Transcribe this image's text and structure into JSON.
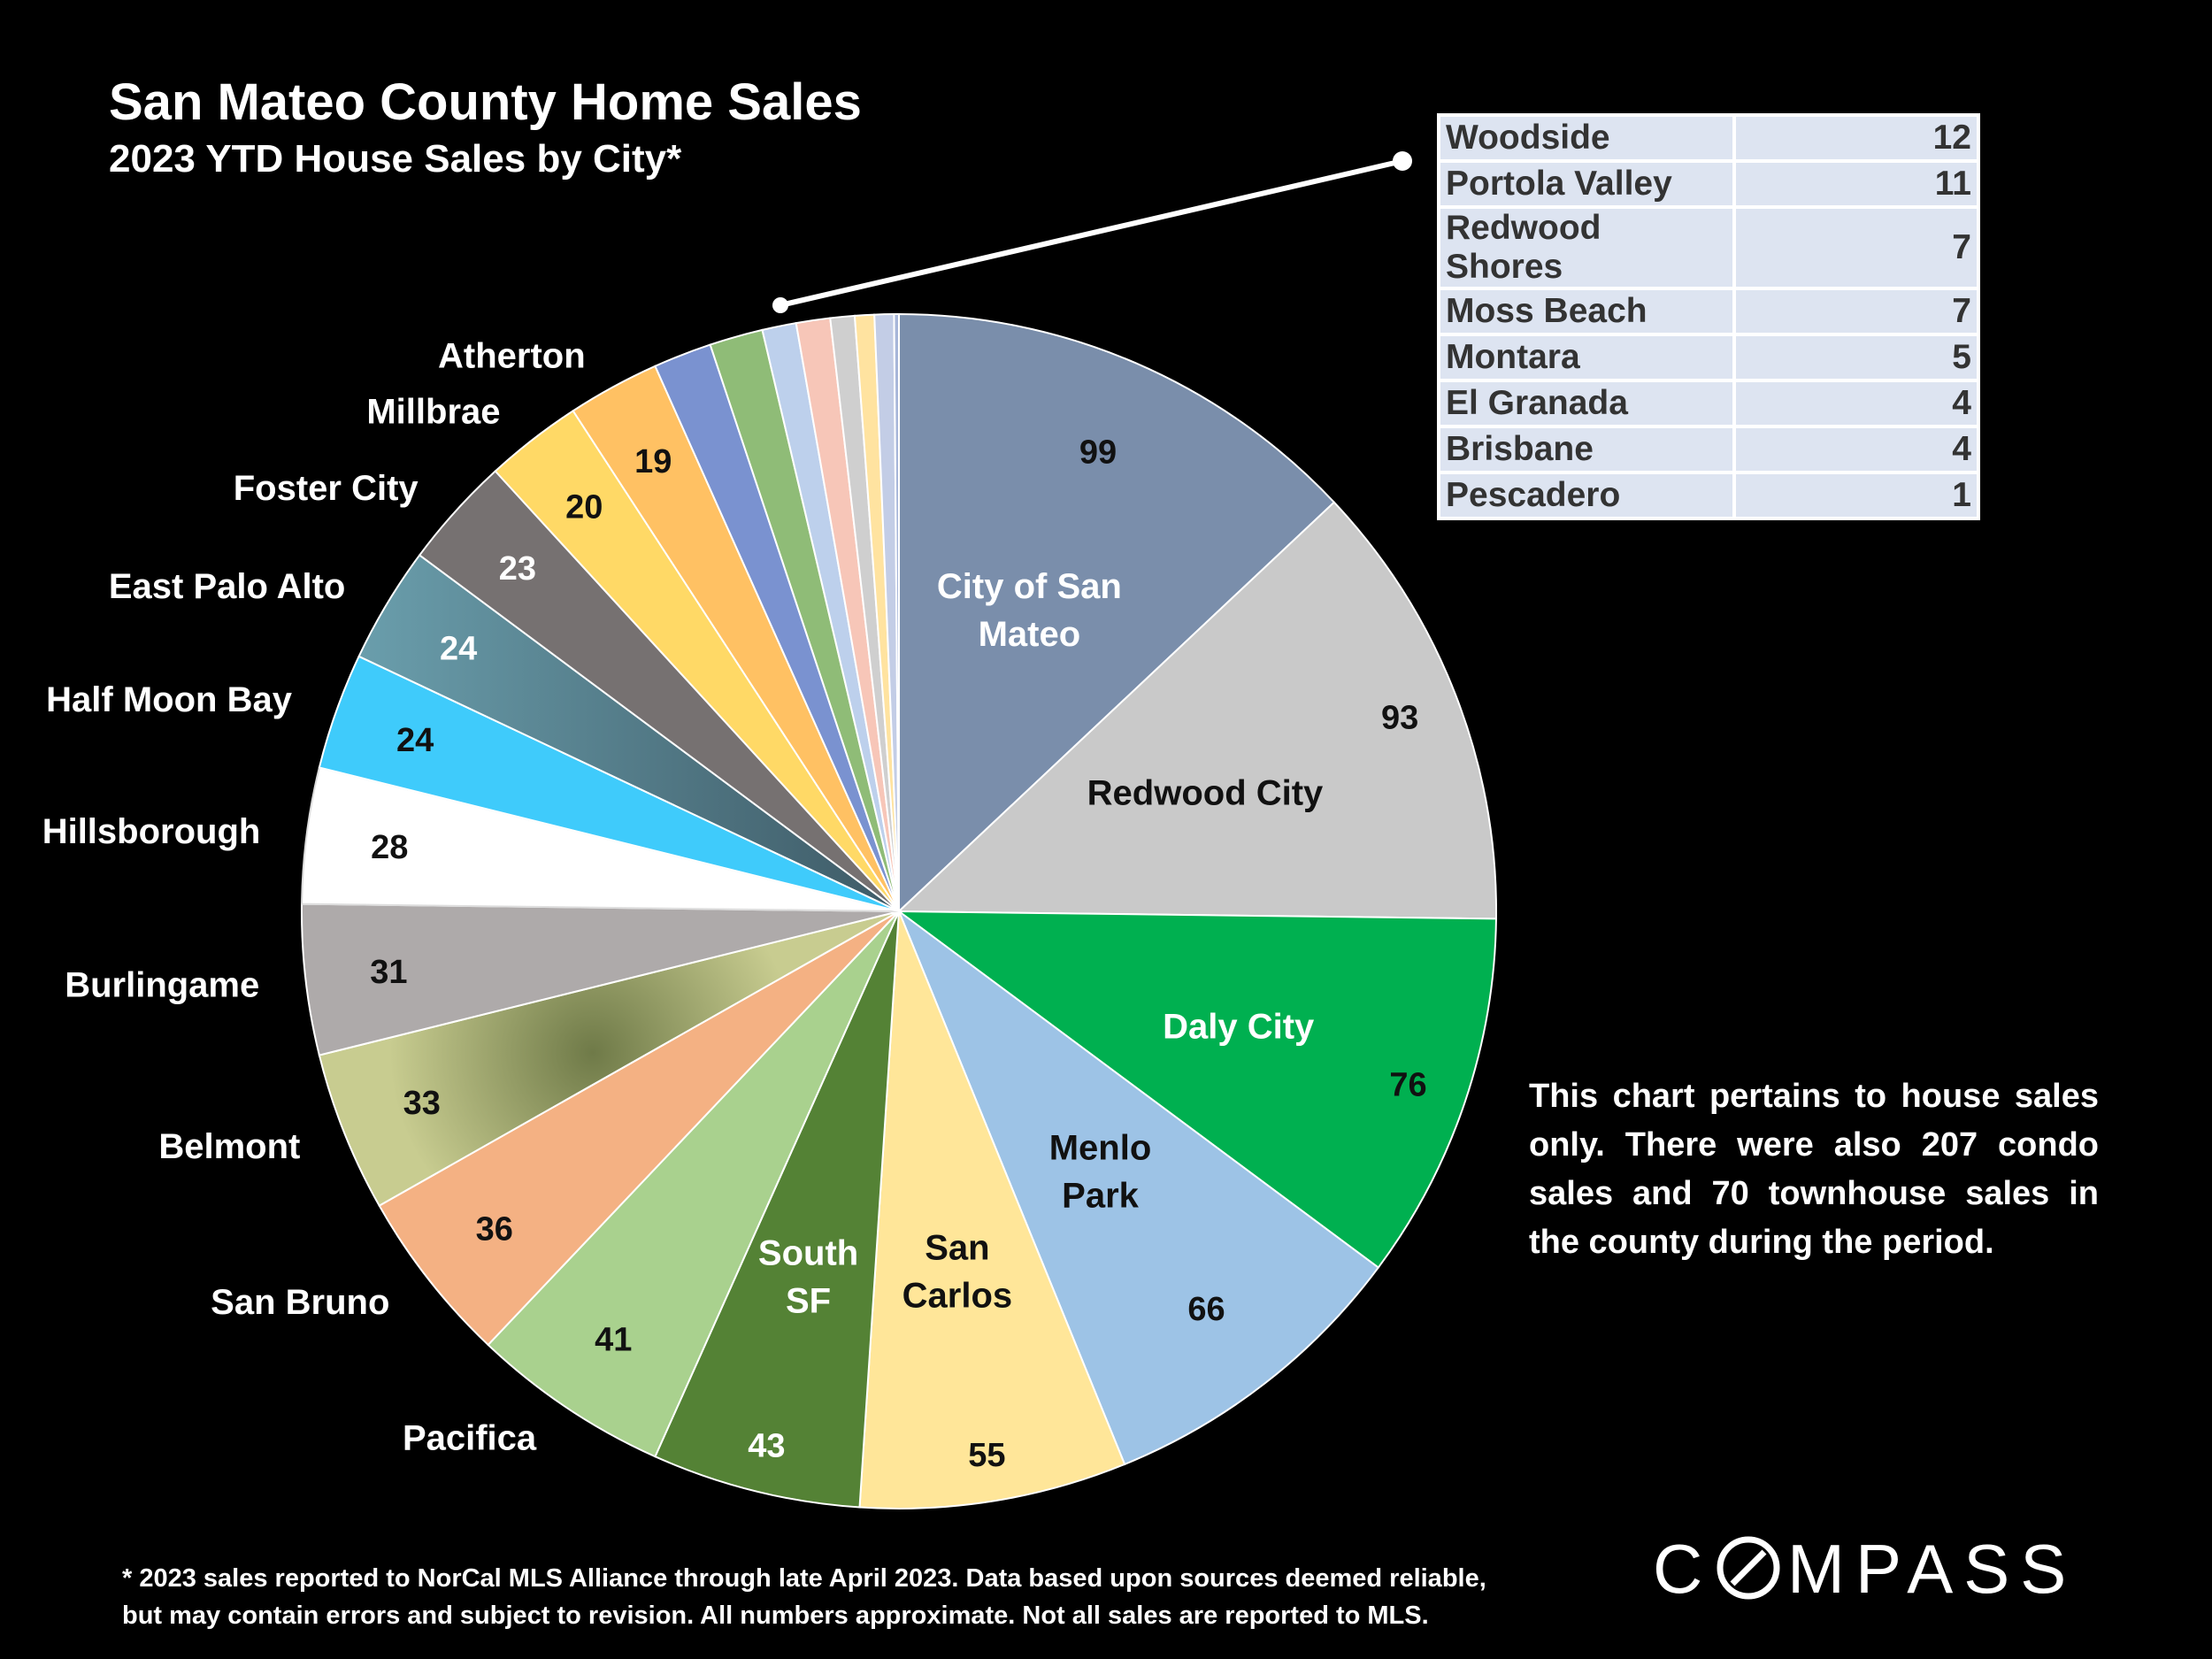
{
  "header": {
    "title": "San Mateo County Home Sales",
    "subtitle": "2023 YTD House Sales by City*"
  },
  "chart_data": {
    "type": "pie",
    "title": "San Mateo County Home Sales",
    "subtitle": "2023 YTD House Sales by City*",
    "slices": [
      {
        "name": "City of San Mateo",
        "value": 99,
        "color": "#7a8eab"
      },
      {
        "name": "Redwood City",
        "value": 93,
        "color": "#c9c9c9"
      },
      {
        "name": "Daly City",
        "value": 76,
        "color": "#00b050"
      },
      {
        "name": "Menlo Park",
        "value": 66,
        "color": "#9dc3e6"
      },
      {
        "name": "San Carlos",
        "value": 55,
        "color": "#ffe699"
      },
      {
        "name": "South SF",
        "value": 43,
        "color": "#548235"
      },
      {
        "name": "Pacifica",
        "value": 41,
        "color": "#a9d18e"
      },
      {
        "name": "San Bruno",
        "value": 36,
        "color": "#f4b183"
      },
      {
        "name": "Belmont",
        "value": 33,
        "color": "#b9bd83"
      },
      {
        "name": "Burlingame",
        "value": 31,
        "color": "#aeaaaa"
      },
      {
        "name": "Hillsborough",
        "value": 28,
        "color": "#ffffff"
      },
      {
        "name": "Half Moon Bay",
        "value": 24,
        "color": "#3fcbfb"
      },
      {
        "name": "East Palo Alto",
        "value": 24,
        "color": "#5d8a98"
      },
      {
        "name": "Foster City",
        "value": 23,
        "color": "#767171"
      },
      {
        "name": "Millbrae",
        "value": 20,
        "color": "#ffd966"
      },
      {
        "name": "Atherton",
        "value": 19,
        "color": "#ffc163"
      },
      {
        "name": "Woodside",
        "value": 12,
        "color": "#7a92d0"
      },
      {
        "name": "Portola Valley",
        "value": 11,
        "color": "#8fbc77"
      },
      {
        "name": "Redwood Shores",
        "value": 7,
        "color": "#bdd0ec"
      },
      {
        "name": "Moss Beach",
        "value": 7,
        "color": "#f7c6b8"
      },
      {
        "name": "Montara",
        "value": 5,
        "color": "#cfcfcf"
      },
      {
        "name": "El Granada",
        "value": 4,
        "color": "#ffe3a0"
      },
      {
        "name": "Brisbane",
        "value": 4,
        "color": "#c3cde6"
      },
      {
        "name": "Pescadero",
        "value": 1,
        "color": "#a7b6d9"
      }
    ],
    "small_slices_table": [
      {
        "city": "Woodside",
        "value": "12"
      },
      {
        "city": "Portola Valley",
        "value": "11"
      },
      {
        "city": "Redwood Shores",
        "value": "7"
      },
      {
        "city": "Moss Beach",
        "value": "7"
      },
      {
        "city": "Montara",
        "value": "5"
      },
      {
        "city": "El Granada",
        "value": "4"
      },
      {
        "city": "Brisbane",
        "value": "4"
      },
      {
        "city": "Pescadero",
        "value": "1"
      }
    ]
  },
  "note": "This chart pertains to house sales only. There were also 207 condo sales and 70 townhouse sales in the county during the period.",
  "footnote": {
    "line1": "* 2023 sales reported to NorCal MLS Alliance through late April 2023. Data based upon sources deemed reliable,",
    "line2": "but may contain errors and subject to revision. All numbers approximate. Not all sales are reported to MLS."
  },
  "logo": {
    "text_before": "C",
    "text_after": "MPASS"
  }
}
